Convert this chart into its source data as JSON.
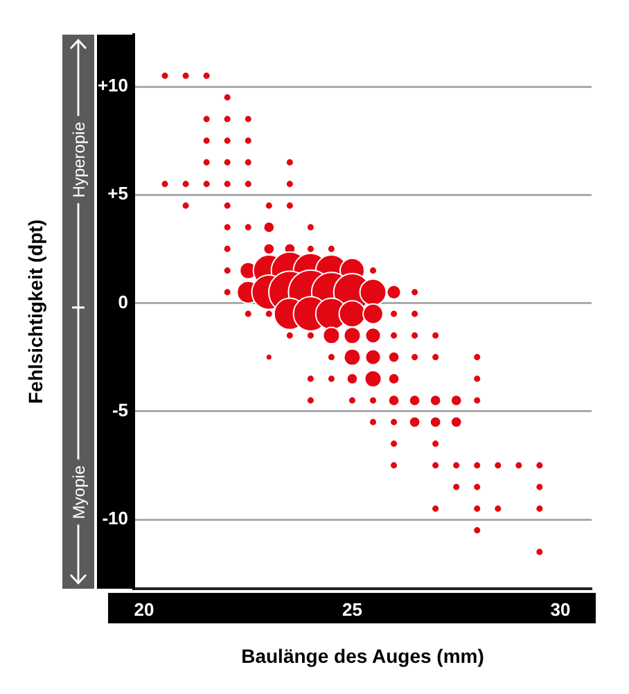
{
  "chart_data": {
    "type": "bubble",
    "xlabel": "Baulänge des Auges (mm)",
    "ylabel": "Fehlsichtigkeit (dpt)",
    "annotations": [
      "Hyperopie",
      "Myopie"
    ],
    "color": "#e30613",
    "grid": "y",
    "legend": false,
    "xlim": [
      19.75,
      30.75
    ],
    "xticks": [
      20,
      25,
      30
    ],
    "ylim": [
      -13.2,
      12.4
    ],
    "yticks": [
      {
        "value": 10,
        "label": "+10"
      },
      {
        "value": 5,
        "label": "+5"
      },
      0,
      -5,
      -10
    ],
    "x": [
      20.5,
      21,
      21.5,
      22,
      21.5,
      22,
      22.5,
      21.5,
      22,
      22.5,
      21.5,
      22,
      22.5,
      23.5,
      20.5,
      21,
      21.5,
      22,
      22.5,
      23.5,
      21,
      22,
      23,
      23.5,
      22,
      22.5,
      23,
      24,
      22,
      23,
      23.5,
      24,
      24.5,
      22,
      22.5,
      23,
      23.5,
      24,
      24.5,
      25,
      25.5,
      22,
      22.5,
      23,
      23.5,
      24,
      24.5,
      25,
      25.5,
      26,
      26.5,
      22.5,
      23,
      23.5,
      24,
      24.5,
      25,
      25.5,
      26,
      26.5,
      23.5,
      24,
      24.5,
      25,
      25.5,
      26,
      26.5,
      27,
      23,
      24.5,
      25,
      25.5,
      26,
      26.5,
      27,
      28,
      24,
      24.5,
      25,
      25.5,
      26,
      28,
      24,
      25,
      25.5,
      26,
      26.5,
      27,
      27.5,
      28,
      25.5,
      26,
      26.5,
      27,
      27.5,
      26,
      27,
      26,
      27,
      27.5,
      28,
      28.5,
      29,
      29.5,
      27.5,
      28,
      29.5,
      27,
      28,
      28.5,
      29.5,
      28,
      29.5
    ],
    "values": [
      10.5,
      10.5,
      10.5,
      9.5,
      8.5,
      8.5,
      8.5,
      7.5,
      7.5,
      7.5,
      6.5,
      6.5,
      6.5,
      6.5,
      5.5,
      5.5,
      5.5,
      5.5,
      5.5,
      5.5,
      4.5,
      4.5,
      4.5,
      4.5,
      3.5,
      3.5,
      3.5,
      3.5,
      2.5,
      2.5,
      2.5,
      2.5,
      2.5,
      1.5,
      1.5,
      1.5,
      1.5,
      1.5,
      1.5,
      1.5,
      1.5,
      0.5,
      0.5,
      0.5,
      0.5,
      0.5,
      0.5,
      0.5,
      0.5,
      0.5,
      0.5,
      -0.5,
      -0.5,
      -0.5,
      -0.5,
      -0.5,
      -0.5,
      -0.5,
      -0.5,
      -0.5,
      -1.5,
      -1.5,
      -1.5,
      -1.5,
      -1.5,
      -1.5,
      -1.5,
      -1.5,
      -2.5,
      -2.5,
      -2.5,
      -2.5,
      -2.5,
      -2.5,
      -2.5,
      -2.5,
      -3.5,
      -3.5,
      -3.5,
      -3.5,
      -3.5,
      -3.5,
      -4.5,
      -4.5,
      -4.5,
      -4.5,
      -4.5,
      -4.5,
      -4.5,
      -4.5,
      -5.5,
      -5.5,
      -5.5,
      -5.5,
      -5.5,
      -6.5,
      -6.5,
      -7.5,
      -7.5,
      -7.5,
      -7.5,
      -7.5,
      -7.5,
      -7.5,
      -8.5,
      -8.5,
      -8.5,
      -9.5,
      -9.5,
      -9.5,
      -9.5,
      -10.5,
      -11.5
    ],
    "sizes": [
      0.03,
      0.03,
      0.03,
      0.03,
      0.03,
      0.03,
      0.03,
      0.03,
      0.03,
      0.03,
      0.03,
      0.03,
      0.03,
      0.03,
      0.03,
      0.03,
      0.03,
      0.03,
      0.03,
      0.03,
      0.03,
      0.03,
      0.03,
      0.03,
      0.03,
      0.03,
      0.06,
      0.03,
      0.03,
      0.06,
      0.06,
      0.03,
      0.03,
      0.03,
      0.14,
      0.5,
      0.7,
      0.6,
      0.5,
      0.3,
      0.03,
      0.03,
      0.25,
      0.6,
      0.9,
      1,
      0.8,
      0.7,
      0.35,
      0.1,
      0.03,
      0.03,
      0.03,
      0.5,
      0.6,
      0.5,
      0.35,
      0.2,
      0.03,
      0.03,
      0.03,
      0.03,
      0.14,
      0.14,
      0.12,
      0.03,
      0.03,
      0.03,
      0.02,
      0.03,
      0.14,
      0.12,
      0.06,
      0.03,
      0.03,
      0.03,
      0.03,
      0.03,
      0.06,
      0.14,
      0.06,
      0.03,
      0.03,
      0.03,
      0.03,
      0.06,
      0.06,
      0.06,
      0.06,
      0.03,
      0.03,
      0.03,
      0.06,
      0.06,
      0.06,
      0.03,
      0.03,
      0.03,
      0.03,
      0.03,
      0.03,
      0.03,
      0.03,
      0.03,
      0.03,
      0.03,
      0.03,
      0.03,
      0.03,
      0.03,
      0.03,
      0.03,
      0.03
    ]
  }
}
